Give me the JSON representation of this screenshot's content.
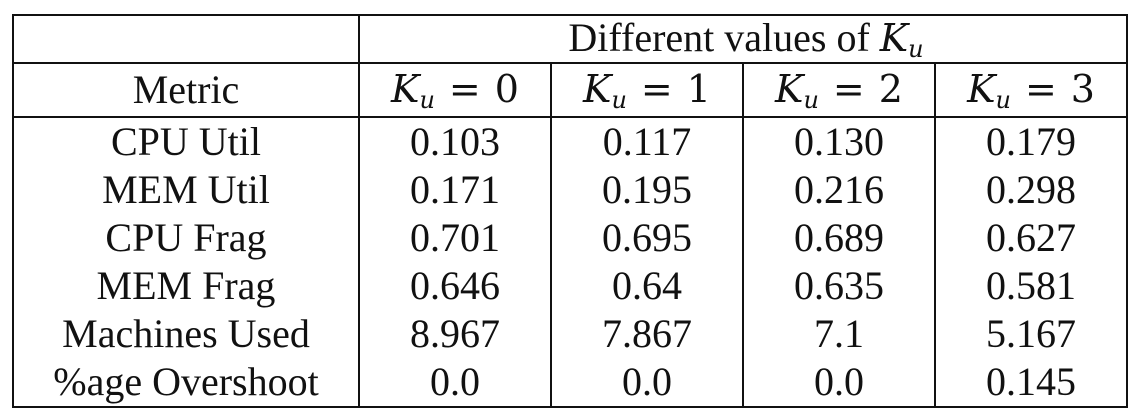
{
  "table": {
    "group_header": {
      "prefix": "Different values of ",
      "symbol": "K",
      "subscript": "u"
    },
    "metric_header": "Metric",
    "k_columns": [
      {
        "symbol": "K",
        "subscript": "u",
        "op": "=",
        "value": "0"
      },
      {
        "symbol": "K",
        "subscript": "u",
        "op": "=",
        "value": "1"
      },
      {
        "symbol": "K",
        "subscript": "u",
        "op": "=",
        "value": "2"
      },
      {
        "symbol": "K",
        "subscript": "u",
        "op": "=",
        "value": "3"
      }
    ],
    "rows": [
      {
        "metric": "CPU Util",
        "values": [
          "0.103",
          "0.117",
          "0.130",
          "0.179"
        ]
      },
      {
        "metric": "MEM Util",
        "values": [
          "0.171",
          "0.195",
          "0.216",
          "0.298"
        ]
      },
      {
        "metric": "CPU Frag",
        "values": [
          "0.701",
          "0.695",
          "0.689",
          "0.627"
        ]
      },
      {
        "metric": "MEM Frag",
        "values": [
          "0.646",
          "0.64",
          "0.635",
          "0.581"
        ]
      },
      {
        "metric": "Machines Used",
        "values": [
          "8.967",
          "7.867",
          "7.1",
          "5.167"
        ]
      },
      {
        "metric": "%age Overshoot",
        "values": [
          "0.0",
          "0.0",
          "0.0",
          "0.145"
        ]
      }
    ]
  }
}
